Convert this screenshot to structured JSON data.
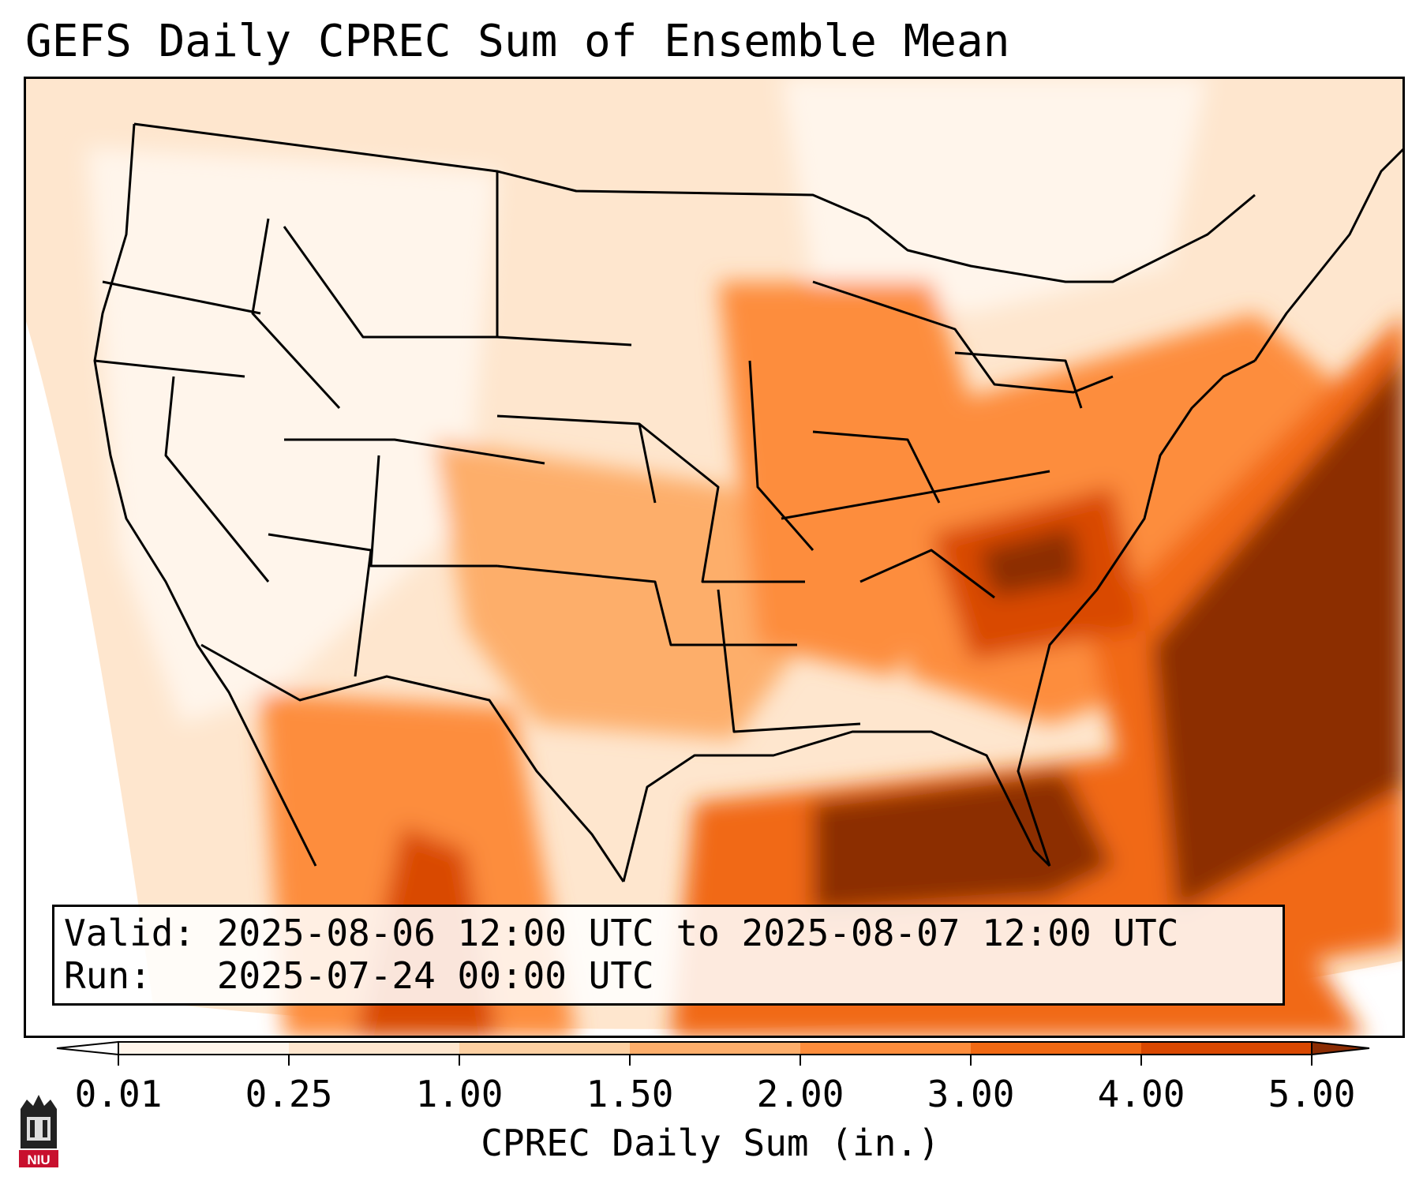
{
  "title": "GEFS Daily CPREC Sum of Ensemble Mean",
  "info": {
    "valid_line": "Valid: 2025-08-06 12:00 UTC to 2025-08-07 12:00 UTC",
    "run_line": "Run:   2025-07-24 00:00 UTC"
  },
  "colorbar": {
    "label": "CPREC Daily Sum (in.)",
    "ticks": [
      "0.01",
      "0.25",
      "1.00",
      "1.50",
      "2.00",
      "3.00",
      "4.00",
      "5.00"
    ],
    "colors": [
      "#fff5eb",
      "#fee6ce",
      "#fdd0a2",
      "#fdae6b",
      "#fd8d3c",
      "#f16913",
      "#d94801",
      "#8c2d04"
    ],
    "extend_low_color": "#ffffff",
    "extend_high_color": "#8c2d04"
  },
  "map": {
    "projection": "Lambert conformal, CONUS",
    "field": "CPREC daily sum, ensemble mean",
    "heavy_regions": [
      "Gulf of Mexico",
      "Western Atlantic off Southeast coast",
      "Tennessee Valley",
      "Sierra Madre Occidental"
    ]
  },
  "logo": {
    "text": "NIU",
    "color": "#c8102e"
  }
}
